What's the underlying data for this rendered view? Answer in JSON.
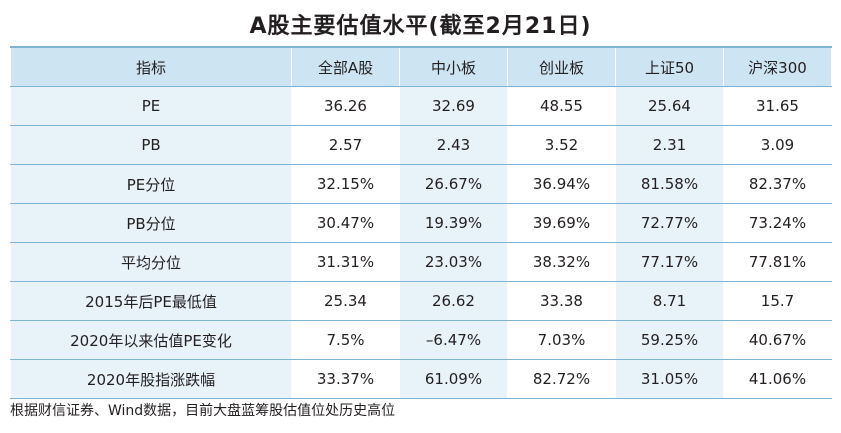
{
  "title": "A股主要估值水平(截至2月21日)",
  "table": {
    "headers": [
      "指标",
      "全部A股",
      "中小板",
      "创业板",
      "上证50",
      "沪深300"
    ],
    "rows": [
      [
        "PE",
        "36.26",
        "32.69",
        "48.55",
        "25.64",
        "31.65"
      ],
      [
        "PB",
        "2.57",
        "2.43",
        "3.52",
        "2.31",
        "3.09"
      ],
      [
        "PE分位",
        "32.15%",
        "26.67%",
        "36.94%",
        "81.58%",
        "82.37%"
      ],
      [
        "PB分位",
        "30.47%",
        "19.39%",
        "39.69%",
        "72.77%",
        "73.24%"
      ],
      [
        "平均分位",
        "31.31%",
        "23.03%",
        "38.32%",
        "77.17%",
        "77.81%"
      ],
      [
        "2015年后PE最低值",
        "25.34",
        "26.62",
        "33.38",
        "8.71",
        "15.7"
      ],
      [
        "2020年以来估值PE变化",
        "7.5%",
        "–6.47%",
        "7.03%",
        "59.25%",
        "40.67%"
      ],
      [
        "2020年股指涨跌幅",
        "33.37%",
        "61.09%",
        "82.72%",
        "31.05%",
        "41.06%"
      ]
    ]
  },
  "note": "根据财信证券、Wind数据，目前大盘蓝筹股估值位处历史高位",
  "colors": {
    "header_bg": "#cde4f2",
    "stripe_bg": "#e7f2f9",
    "rule": "#7fb3d3"
  }
}
